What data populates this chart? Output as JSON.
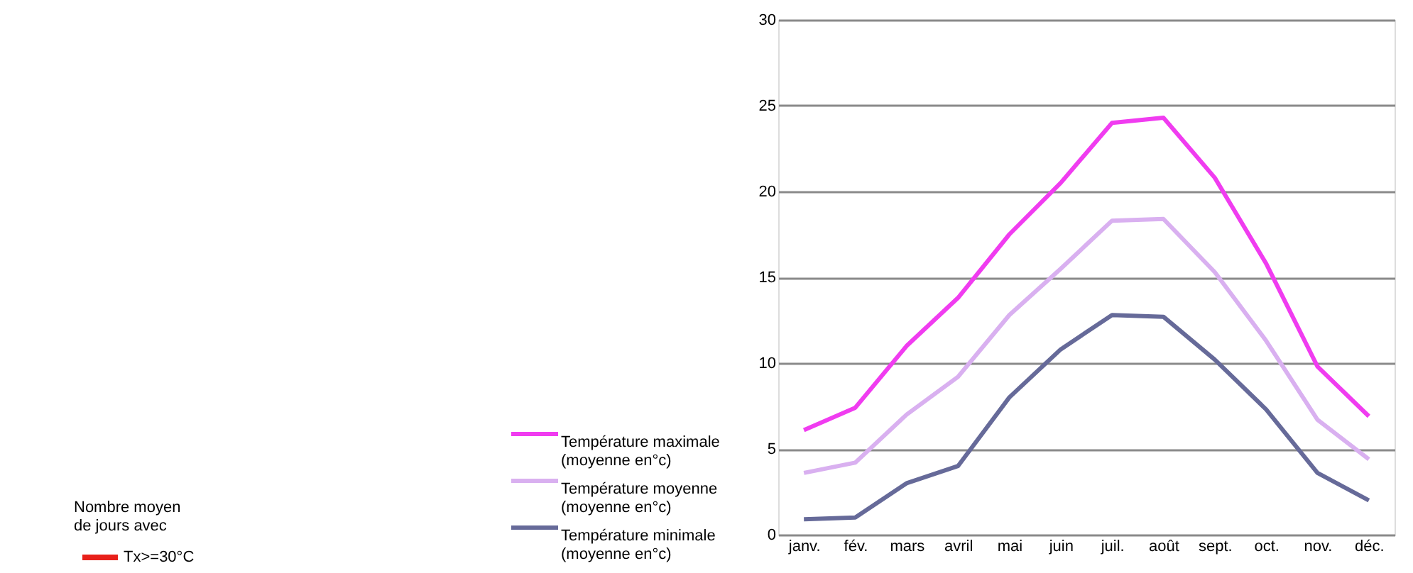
{
  "chart_data": {
    "type": "line",
    "categories": [
      "janv.",
      "fév.",
      "mars",
      "avril",
      "mai",
      "juin",
      "juil.",
      "août",
      "sept.",
      "oct.",
      "nov.",
      "déc."
    ],
    "series": [
      {
        "name": "Température maximale (moyenne en°c)",
        "color": "#f03cf0",
        "values": [
          6.1,
          7.4,
          11.0,
          13.8,
          17.5,
          20.5,
          24.0,
          24.3,
          20.8,
          15.8,
          9.8,
          6.9
        ]
      },
      {
        "name": "Température moyenne (moyenne en°c)",
        "color": "#d9b0f0",
        "values": [
          3.6,
          4.2,
          7.0,
          9.2,
          12.8,
          15.5,
          18.3,
          18.4,
          15.3,
          11.3,
          6.7,
          4.4
        ]
      },
      {
        "name": "Température minimale (moyenne en°c)",
        "color": "#666a99",
        "values": [
          0.9,
          1.0,
          3.0,
          4.0,
          8.0,
          10.8,
          12.8,
          12.7,
          10.2,
          7.3,
          3.6,
          2.0
        ]
      },
      {
        "name": "Tx>=30°C",
        "type": "bar",
        "color": "#e8201a",
        "values": [
          null,
          null,
          null,
          null,
          null,
          null,
          null,
          null,
          null,
          null,
          null,
          null
        ]
      }
    ],
    "legend_title": "Nombre moyen de jours avec",
    "ylim": [
      0,
      30
    ],
    "yticks": [
      0,
      5,
      10,
      15,
      20,
      25,
      30
    ],
    "grid": "y",
    "legend": "left",
    "marker": "none",
    "line_style": "solid"
  }
}
